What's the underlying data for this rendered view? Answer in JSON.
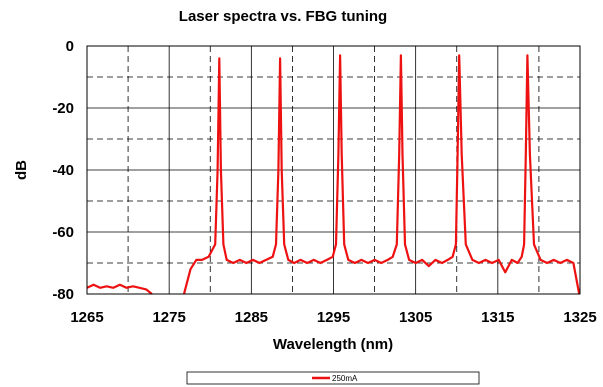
{
  "chart_data": {
    "type": "line",
    "title": "Laser spectra vs. FBG tuning",
    "xlabel": "Wavelength (nm)",
    "ylabel": "dB",
    "xlim": [
      1265,
      1325
    ],
    "ylim": [
      -80,
      0
    ],
    "xticks": [
      1265,
      1275,
      1285,
      1295,
      1305,
      1315,
      1325
    ],
    "yticks": [
      0,
      -20,
      -40,
      -60,
      -80
    ],
    "grid": true,
    "legend_position": "bottom-center",
    "series": [
      {
        "name": "250mA",
        "color": "#ee1111",
        "segments": [
          {
            "x": [
              1265.0,
              1265.8,
              1266.6,
              1267.4,
              1268.2,
              1269.0,
              1269.8,
              1270.6,
              1271.4,
              1272.2,
              1272.9
            ],
            "y": [
              -78,
              -77,
              -78,
              -77.5,
              -78,
              -77,
              -78,
              -77.5,
              -78,
              -78.5,
              -80
            ]
          },
          {
            "x": [
              1276.8,
              1277.6,
              1278.3,
              1279.0,
              1279.8,
              1280.6,
              1280.9,
              1281.1,
              1281.3,
              1281.6,
              1282.0,
              1282.8,
              1283.6,
              1284.4,
              1285.2,
              1286.0,
              1286.8,
              1287.6,
              1288.0,
              1288.3,
              1288.5,
              1288.7,
              1289.0,
              1289.5,
              1290.2,
              1291.0,
              1291.8,
              1292.6,
              1293.4,
              1294.2,
              1294.9,
              1295.3,
              1295.6,
              1295.8,
              1296.0,
              1296.3,
              1296.8,
              1297.6,
              1298.4,
              1299.2,
              1300.0,
              1300.8,
              1301.6,
              1302.2,
              1302.7,
              1303.0,
              1303.2,
              1303.4,
              1303.7,
              1304.2,
              1305.0,
              1305.8,
              1306.6,
              1307.4,
              1308.2,
              1308.9,
              1309.5,
              1309.9,
              1310.1,
              1310.3,
              1310.6,
              1311.1,
              1311.9,
              1312.7,
              1313.5,
              1314.3,
              1315.1,
              1315.9,
              1316.7,
              1317.4,
              1317.9,
              1318.2,
              1318.4,
              1318.6,
              1318.9,
              1319.4,
              1320.2,
              1321.0,
              1321.8,
              1322.6,
              1323.4,
              1324.2,
              1324.9
            ],
            "y": [
              -80,
              -72,
              -69,
              -69,
              -68,
              -64,
              -40,
              -4,
              -40,
              -64,
              -69,
              -70,
              -69,
              -70,
              -69,
              -70,
              -69,
              -68,
              -64,
              -40,
              -4,
              -40,
              -64,
              -69,
              -70,
              -69,
              -70,
              -69,
              -70,
              -69,
              -68,
              -64,
              -35,
              -3,
              -35,
              -64,
              -69,
              -70,
              -69,
              -70,
              -69,
              -70,
              -69,
              -68,
              -64,
              -35,
              -3,
              -35,
              -64,
              -69,
              -70,
              -69,
              -71,
              -69,
              -70,
              -69,
              -68,
              -64,
              -35,
              -3,
              -35,
              -64,
              -69,
              -70,
              -69,
              -70,
              -69,
              -73,
              -69,
              -70,
              -68,
              -64,
              -35,
              -3,
              -35,
              -64,
              -69,
              -70,
              -69,
              -70,
              -69,
              -70,
              -80
            ]
          }
        ]
      }
    ]
  }
}
